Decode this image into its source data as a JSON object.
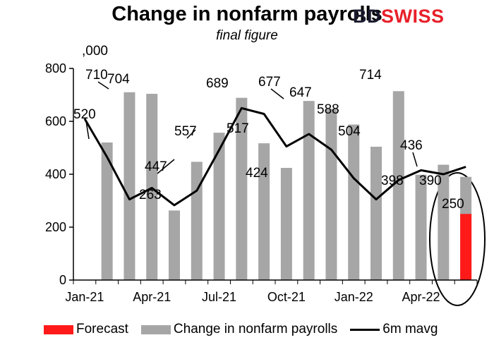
{
  "logo": {
    "text_dark": "BD",
    "text_brand": "SWISS"
  },
  "colors": {
    "bar": "#a6a6a6",
    "forecast": "#ff1a1a",
    "line": "#000000"
  },
  "chart_data": {
    "type": "bar",
    "title": "Change in nonfarm payrolls",
    "subtitle": "final figure",
    "unit_label": ",000",
    "ylim": [
      0,
      800
    ],
    "yticks": [
      0,
      200,
      400,
      600,
      800
    ],
    "categories": [
      "Jan-21",
      "Feb-21",
      "Mar-21",
      "Apr-21",
      "May-21",
      "Jun-21",
      "Jul-21",
      "Aug-21",
      "Sep-21",
      "Oct-21",
      "Nov-21",
      "Dec-21",
      "Jan-22",
      "Feb-22",
      "Mar-22",
      "Apr-22",
      "May-22",
      "Jun-22"
    ],
    "xtick_labels": [
      "Jan-21",
      "",
      "",
      "Apr-21",
      "",
      "",
      "Jul-21",
      "",
      "",
      "Oct-21",
      "",
      "",
      "Jan-22",
      "",
      "",
      "Apr-22",
      "",
      ""
    ],
    "series": [
      {
        "name": "Change in nonfarm payrolls",
        "type": "bar",
        "values": [
          null,
          520,
          710,
          704,
          263,
          447,
          557,
          689,
          517,
          424,
          677,
          647,
          588,
          504,
          714,
          398,
          436,
          390
        ]
      },
      {
        "name": "Forecast",
        "type": "bar",
        "values": [
          null,
          null,
          null,
          null,
          null,
          null,
          null,
          null,
          null,
          null,
          null,
          null,
          null,
          null,
          null,
          null,
          null,
          250
        ]
      },
      {
        "name": "6m mavg",
        "type": "line",
        "values": [
          610,
          465,
          305,
          348,
          283,
          338,
          492,
          650,
          628,
          505,
          552,
          493,
          385,
          305,
          378,
          415,
          400,
          428
        ]
      }
    ],
    "data_labels": [
      "",
      "520",
      "710",
      "704",
      "263",
      "447",
      "557",
      "689",
      "517",
      "424",
      "677",
      "647",
      "588",
      "504",
      "714",
      "398",
      "436",
      "390",
      "250"
    ],
    "legend": [
      "Forecast",
      "Change in nonfarm payrolls",
      "6m mavg"
    ],
    "legend_position": "bottom",
    "grid": false
  }
}
